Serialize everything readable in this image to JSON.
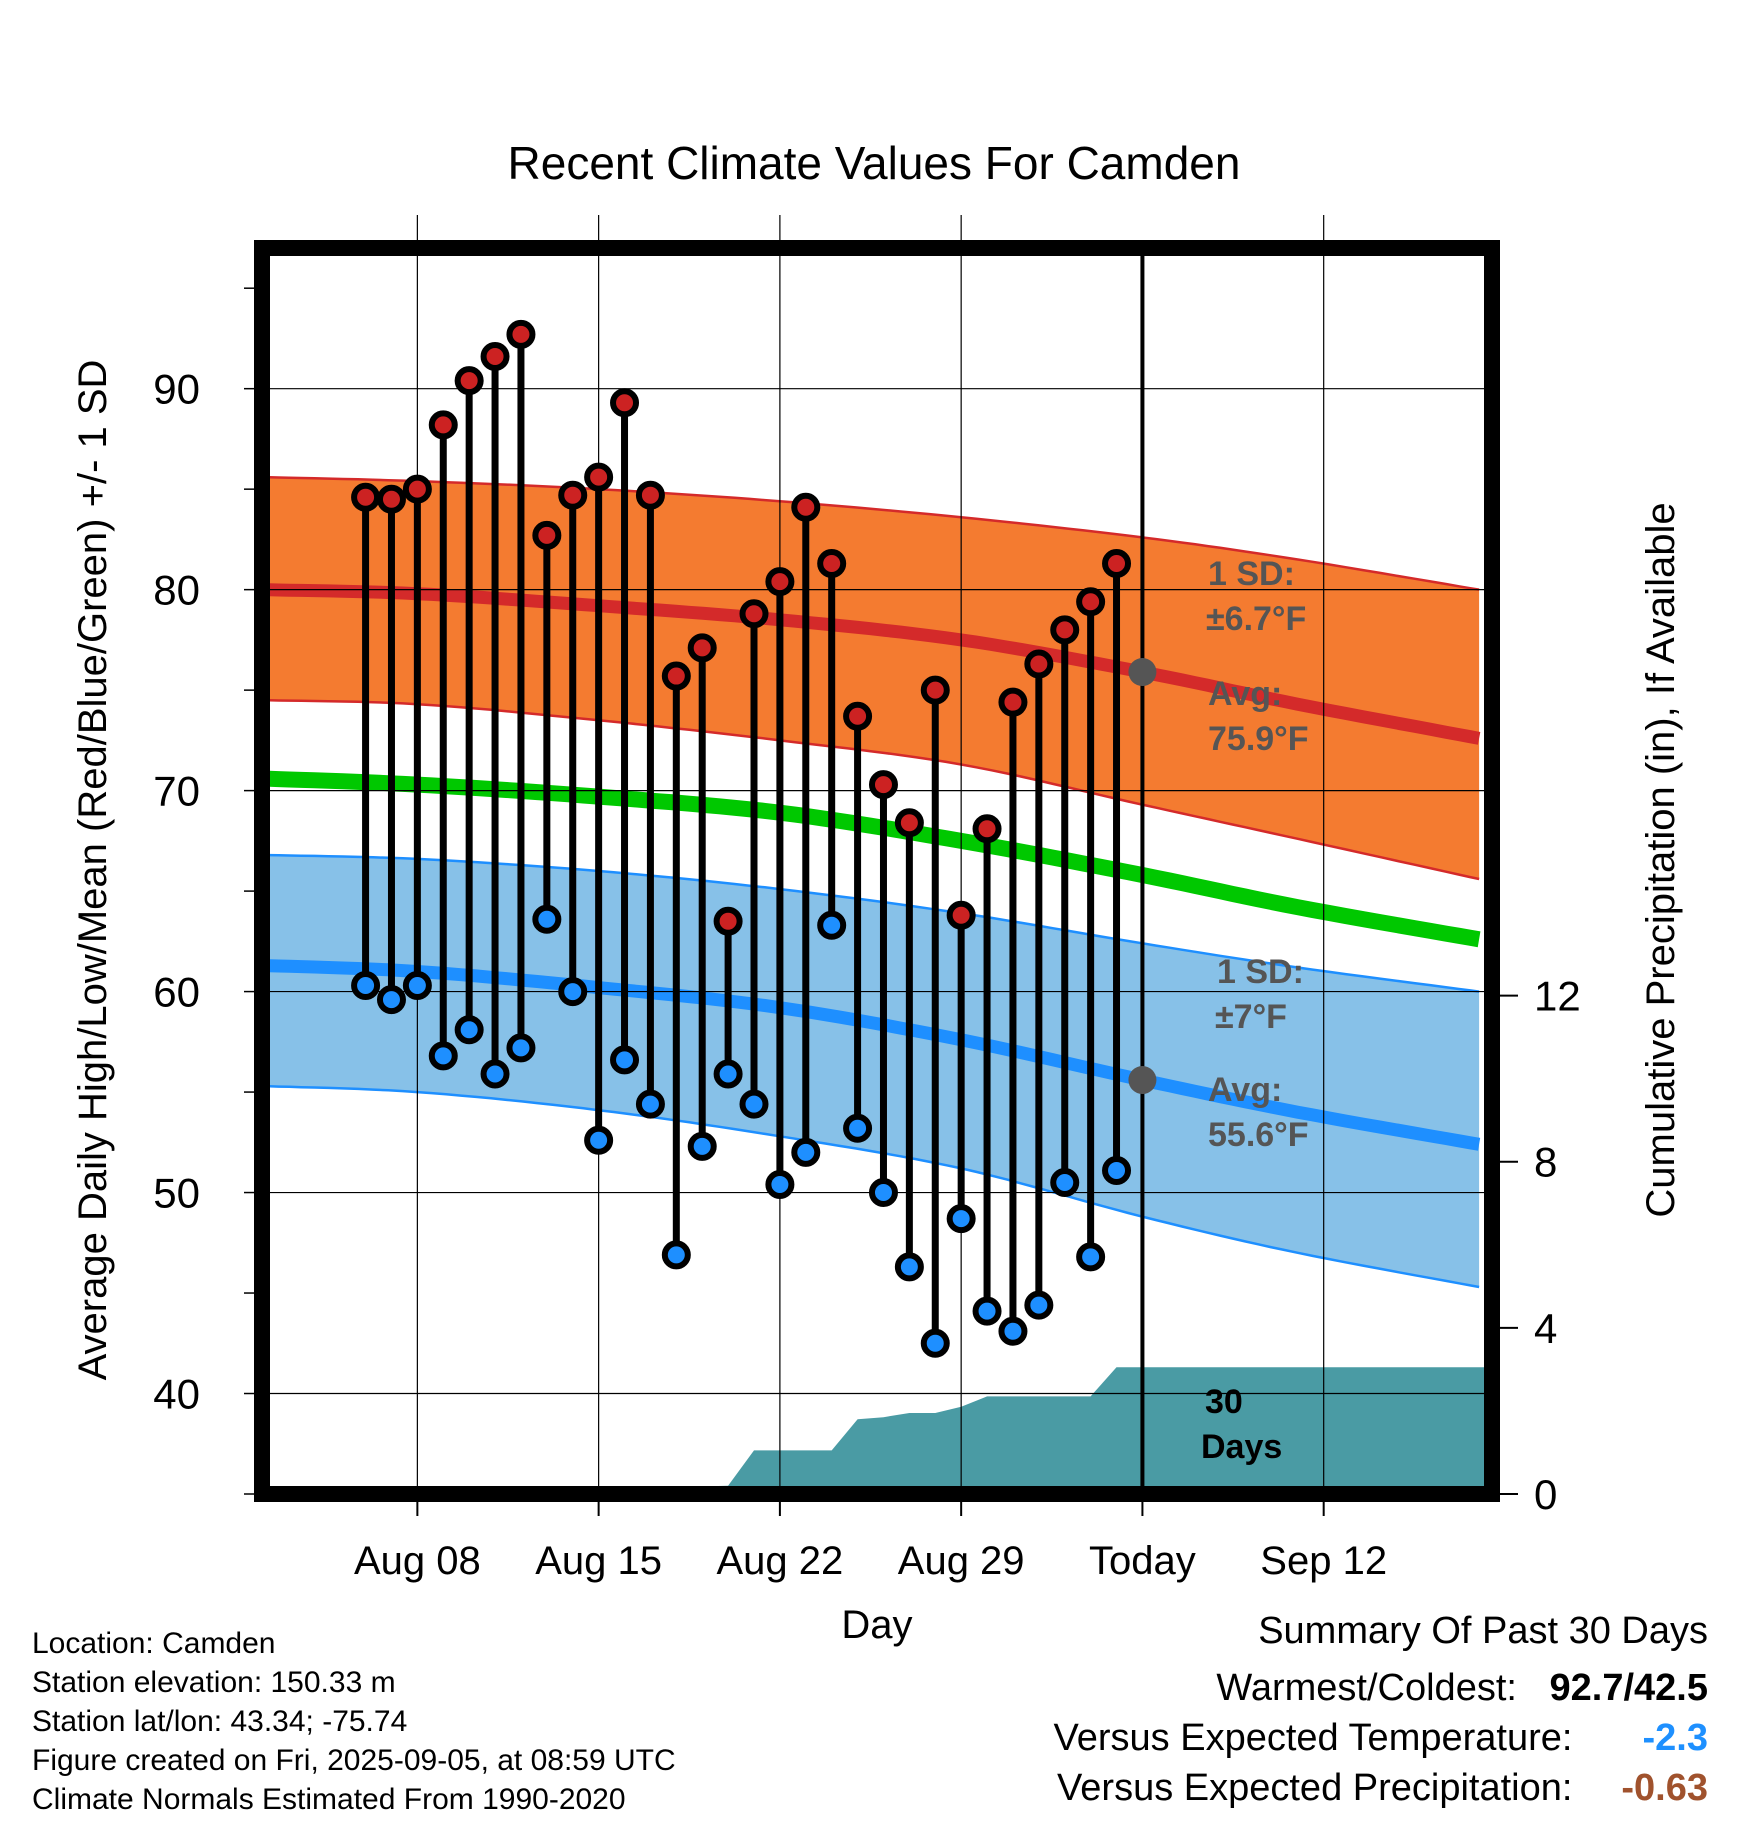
{
  "title": "Recent Climate Values For Camden",
  "meta": {
    "location": "Location: Camden",
    "elevation": "Station elevation: 150.33 m",
    "latlon": "Station lat/lon: 43.34; -75.74",
    "created": "Figure created on Fri, 2025-09-05, at 08:59 UTC",
    "normals": "Climate Normals Estimated From 1990-2020"
  },
  "summary": {
    "title": "Summary Of Past 30 Days",
    "warm_cold_label": "Warmest/Coldest:",
    "warm_cold_value": "92.7/42.5",
    "temp_label": "Versus Expected Temperature:",
    "temp_value": "-2.3",
    "temp_color": "#1e90ff",
    "precip_label": "Versus Expected Precipitation:",
    "precip_value": "-0.63",
    "precip_color": "#a0522d"
  },
  "chart_data": {
    "type": "line",
    "title": "Recent Climate Values For Camden",
    "xlabel": "Day",
    "ylabel": "Average Daily High/Low/Mean (Red/Blue/Green) +/- 1 SD",
    "y2label": "Cumulative Precipitation (in), If Available",
    "x_range_days": [
      -34,
      13.5
    ],
    "ylim": [
      35,
      97
    ],
    "y2lim": [
      0,
      30
    ],
    "yticks": [
      40,
      50,
      60,
      70,
      80,
      90
    ],
    "y2ticks": [
      0,
      4,
      8,
      12
    ],
    "xticks": [
      {
        "day": -28,
        "label": "Aug 08"
      },
      {
        "day": -21,
        "label": "Aug 15"
      },
      {
        "day": -14,
        "label": "Aug 22"
      },
      {
        "day": -7,
        "label": "Aug 29"
      },
      {
        "day": 0,
        "label": "Today"
      },
      {
        "day": 7,
        "label": "Sep 12"
      }
    ],
    "grid": true,
    "colors": {
      "high_band": "#f47b30",
      "high_mean": "#d42a2a",
      "low_band": "#87c1e8",
      "low_mean": "#1e8fff",
      "mean": "#00c800",
      "precip": "#4a9ba4",
      "high_dot": "#cc2222",
      "low_dot": "#1e8fff",
      "annot": "#555555"
    },
    "normals": {
      "days": [
        -34,
        -28,
        -21,
        -14,
        -7,
        0,
        6,
        13
      ],
      "high_mean": [
        80.0,
        79.8,
        79.2,
        78.5,
        77.5,
        75.9,
        74.3,
        72.6
      ],
      "high_upper": [
        85.6,
        85.4,
        85.0,
        84.4,
        83.6,
        82.6,
        81.5,
        80.0
      ],
      "high_lower": [
        74.5,
        74.3,
        73.5,
        72.5,
        71.3,
        69.3,
        67.6,
        65.6
      ],
      "mean": [
        70.6,
        70.3,
        69.7,
        68.9,
        67.5,
        65.8,
        64.2,
        62.6
      ],
      "low_mean": [
        61.3,
        61.0,
        60.2,
        59.2,
        57.6,
        55.6,
        54.0,
        52.4
      ],
      "low_upper": [
        66.8,
        66.6,
        66.0,
        65.1,
        63.9,
        62.4,
        61.2,
        60.0
      ],
      "low_lower": [
        55.3,
        55.0,
        54.1,
        52.8,
        51.2,
        48.8,
        47.0,
        45.3
      ]
    },
    "observations": {
      "days": [
        -30,
        -29,
        -28,
        -27,
        -26,
        -25,
        -24,
        -23,
        -22,
        -21,
        -20,
        -19,
        -18,
        -17,
        -16,
        -15,
        -14,
        -13,
        -12,
        -11,
        -10,
        -9,
        -8,
        -7,
        -6,
        -5,
        -4,
        -3,
        -2,
        -1
      ],
      "highs": [
        84.6,
        84.5,
        85.0,
        88.2,
        90.4,
        91.6,
        92.7,
        82.7,
        84.7,
        85.6,
        89.3,
        84.7,
        75.7,
        77.1,
        63.5,
        78.8,
        80.4,
        84.1,
        81.3,
        73.7,
        70.3,
        68.4,
        75.0,
        63.8,
        68.1,
        74.4,
        76.3,
        78.0,
        79.4,
        81.3
      ],
      "lows": [
        60.3,
        59.6,
        60.3,
        56.8,
        58.1,
        55.9,
        57.2,
        63.6,
        60.0,
        52.6,
        56.6,
        54.4,
        46.9,
        52.3,
        55.9,
        54.4,
        50.4,
        52.0,
        63.3,
        53.2,
        50.0,
        46.3,
        42.5,
        48.7,
        44.1,
        43.1,
        44.4,
        50.5,
        46.8,
        51.1
      ]
    },
    "precipitation": {
      "days": [
        -34,
        -22,
        -21,
        -19,
        -16,
        -15,
        -12,
        -11,
        -10,
        -9,
        -8,
        -7,
        -6,
        -5,
        -2,
        -1,
        0,
        10,
        13.5
      ],
      "cumulative": [
        0,
        0,
        0.15,
        0.15,
        0.2,
        1.05,
        1.05,
        1.8,
        1.85,
        1.95,
        1.95,
        2.1,
        2.35,
        2.35,
        2.35,
        3.05,
        3.05,
        3.05,
        3.05
      ]
    },
    "annotations": {
      "high_sd": "1 SD:",
      "high_sd_val": "±6.7°F",
      "high_avg": "Avg:",
      "high_avg_val": "75.9°F",
      "low_sd": "1 SD:",
      "low_sd_val": "±7°F",
      "low_avg": "Avg:",
      "low_avg_val": "55.6°F",
      "days_line1": "30",
      "days_line2": "Days"
    }
  }
}
